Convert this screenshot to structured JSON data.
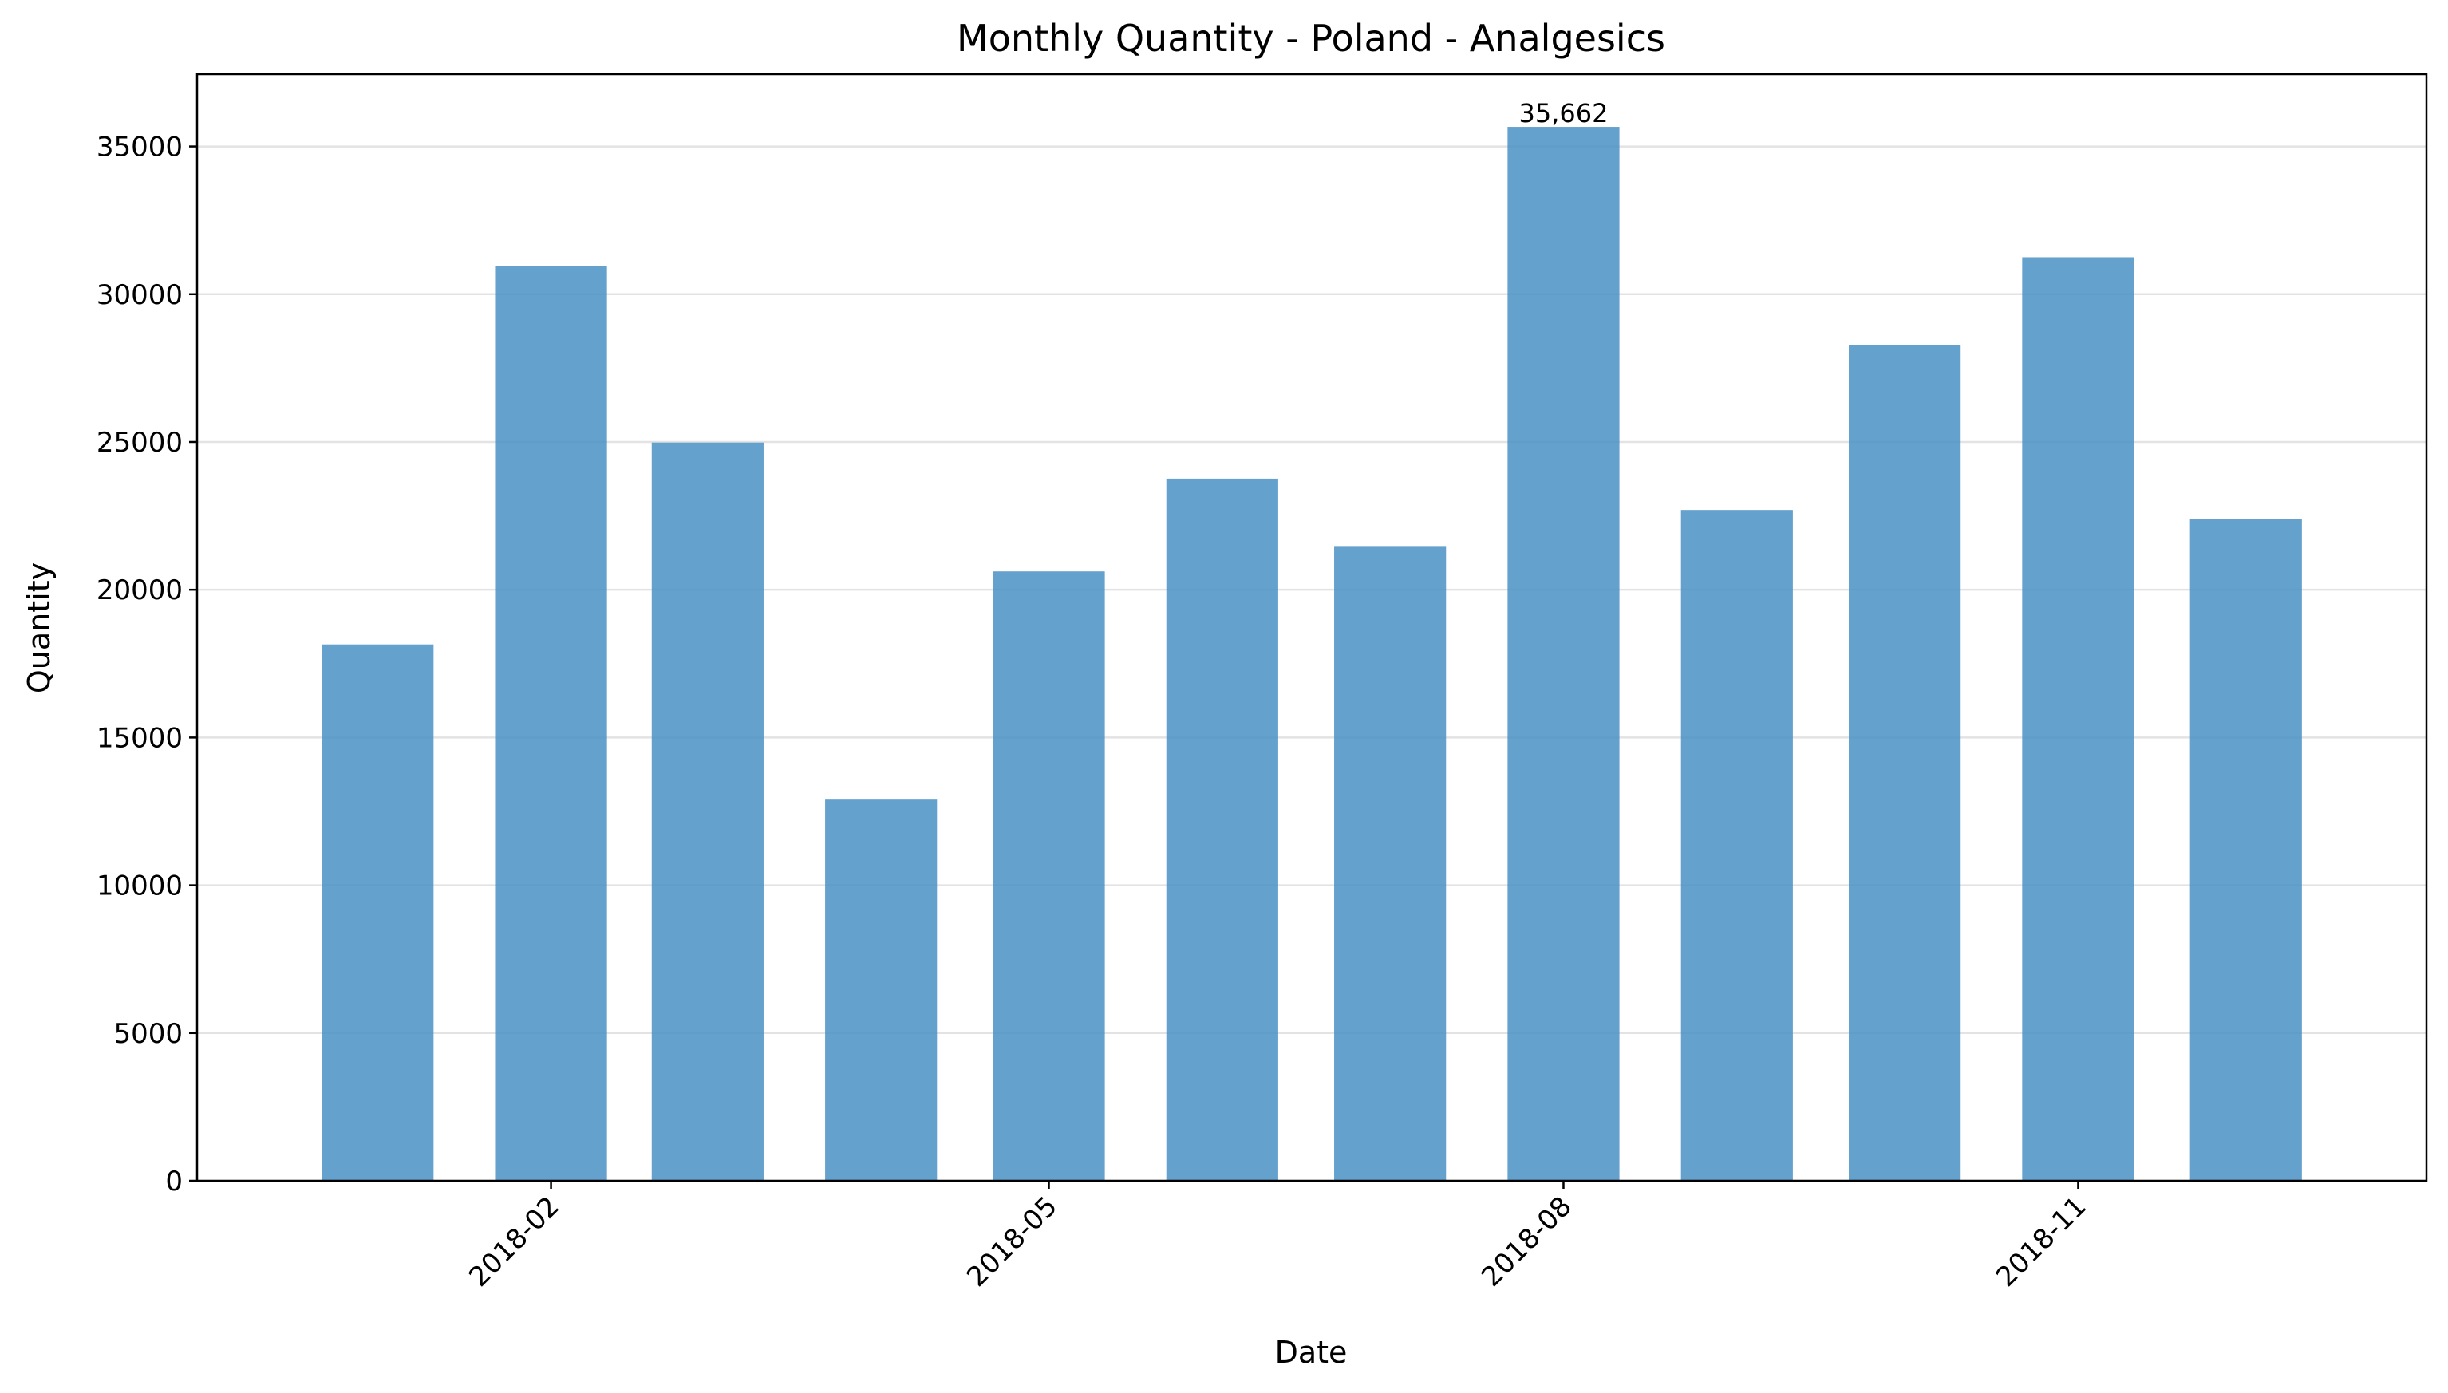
{
  "chart_data": {
    "type": "bar",
    "title": "Monthly Quantity - Poland - Analgesics",
    "xlabel": "Date",
    "ylabel": "Quantity",
    "x_dates": [
      "2018-01-01",
      "2018-02-01",
      "2018-03-01",
      "2018-04-01",
      "2018-05-01",
      "2018-06-01",
      "2018-07-01",
      "2018-08-01",
      "2018-09-01",
      "2018-10-01",
      "2018-11-01",
      "2018-12-01"
    ],
    "values": [
      18150,
      30950,
      24980,
      12900,
      20620,
      23760,
      21480,
      35662,
      22700,
      28280,
      31250,
      22400
    ],
    "color": "#4a90c4",
    "bar_alpha": 0.85,
    "xticks": [
      {
        "date": "2018-02-01",
        "label": "2018-02"
      },
      {
        "date": "2018-05-01",
        "label": "2018-05"
      },
      {
        "date": "2018-08-01",
        "label": "2018-08"
      },
      {
        "date": "2018-11-01",
        "label": "2018-11"
      }
    ],
    "xtick_rotation": 45,
    "yticks": [
      0,
      5000,
      10000,
      15000,
      20000,
      25000,
      30000,
      35000
    ],
    "ylim": [
      0,
      37445
    ],
    "grid": {
      "axis": "y",
      "on": true
    },
    "annotations": [
      {
        "date": "2018-08-01",
        "text": "35,662"
      }
    ]
  }
}
